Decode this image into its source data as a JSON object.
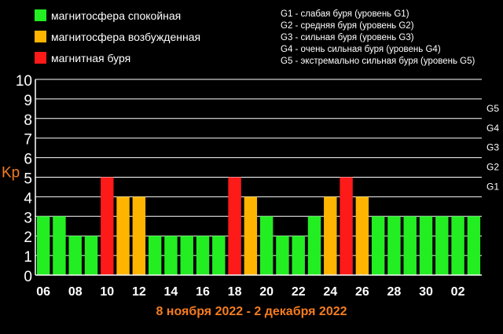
{
  "legend": {
    "items": [
      {
        "label": "магнитосфера спокойная",
        "color": "#22ee22"
      },
      {
        "label": "магнитосфера возбужденная",
        "color": "#ffb400"
      },
      {
        "label": "магнитная буря",
        "color": "#ff1a1a"
      }
    ]
  },
  "storm_levels": [
    "G1 - слабая буря (уровень G1)",
    "G2 - средняя буря (уровень G2)",
    "G3 - сильная буря (уровень G3)",
    "G4 - очень сильная буря (уровень G4)",
    "G5 - экстремально сильная буря (уровень G5)"
  ],
  "date_range": "8 ноября 2022 - 2 декабря 2022",
  "chart_data": {
    "type": "bar",
    "ylabel": "Kp",
    "ylim": [
      0,
      10
    ],
    "yticks": [
      0,
      1,
      2,
      3,
      4,
      5,
      6,
      7,
      8,
      9,
      10
    ],
    "right_labels": [
      {
        "label": "G1",
        "value": 5
      },
      {
        "label": "G2",
        "value": 6
      },
      {
        "label": "G3",
        "value": 7
      },
      {
        "label": "G4",
        "value": 8
      },
      {
        "label": "G5",
        "value": 9
      }
    ],
    "xticks": [
      "06",
      "08",
      "10",
      "12",
      "14",
      "16",
      "18",
      "20",
      "22",
      "24",
      "26",
      "28",
      "30",
      "02"
    ],
    "colors": {
      "calm": "#22ee22",
      "excited": "#ffb400",
      "storm": "#ff1a1a"
    },
    "values": [
      3,
      3,
      2,
      2,
      5,
      4,
      4,
      2,
      2,
      2,
      2,
      2,
      5,
      4,
      3,
      2,
      2,
      3,
      4,
      5,
      4,
      3,
      3,
      3,
      3,
      3,
      3,
      3
    ],
    "states": [
      "calm",
      "calm",
      "calm",
      "calm",
      "storm",
      "excited",
      "excited",
      "calm",
      "calm",
      "calm",
      "calm",
      "calm",
      "storm",
      "excited",
      "calm",
      "calm",
      "calm",
      "calm",
      "excited",
      "storm",
      "excited",
      "calm",
      "calm",
      "calm",
      "calm",
      "calm",
      "calm",
      "calm"
    ],
    "grid": true
  }
}
